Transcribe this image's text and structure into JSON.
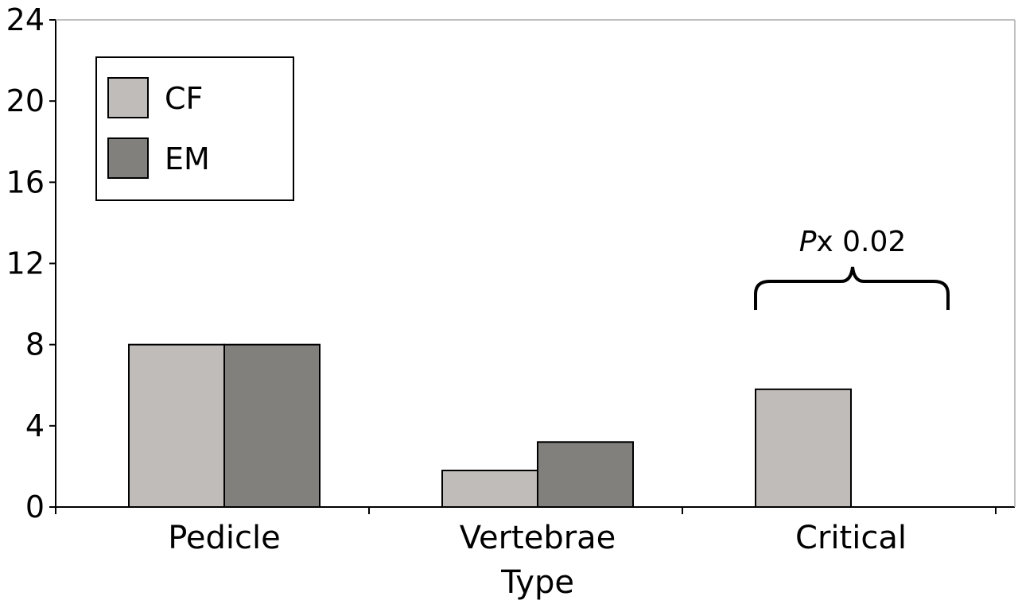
{
  "chart_data": {
    "type": "bar",
    "title": "",
    "xlabel": "",
    "ylabel": "",
    "categories": [
      [
        "Pedicle"
      ],
      [
        "Vertebrae",
        "Type"
      ],
      [
        "Critical"
      ]
    ],
    "series": [
      {
        "name": "CF",
        "color": "#c0bcb9",
        "values": [
          8,
          1.8,
          5.8
        ]
      },
      {
        "name": "EM",
        "color": "#81807c",
        "values": [
          8,
          3.2,
          0
        ]
      }
    ],
    "ylim": [
      0,
      24
    ],
    "yticks": [
      0,
      4,
      8,
      12,
      16,
      20,
      24
    ],
    "grid": false,
    "legend_position": "top-left",
    "annotations": [
      {
        "category_index": 2,
        "italic": "P",
        "text": "x 0.02"
      }
    ]
  }
}
